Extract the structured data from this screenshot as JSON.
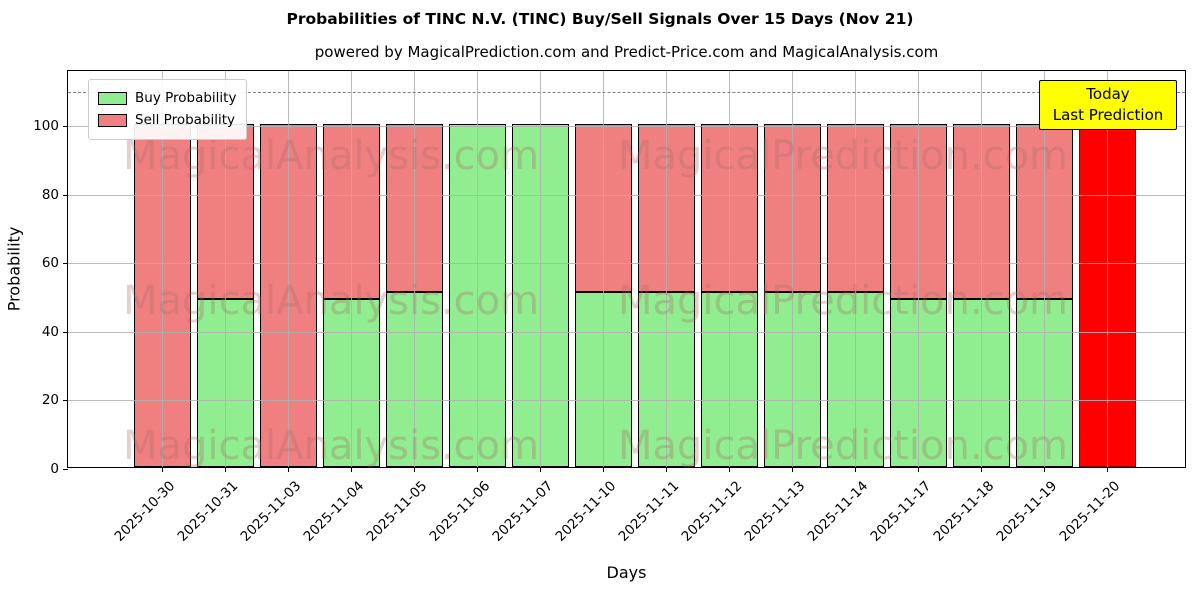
{
  "title": "Probabilities of TINC N.V. (TINC) Buy/Sell Signals Over 15 Days (Nov 21)",
  "subtitle": "powered by MagicalPrediction.com and Predict-Price.com and MagicalAnalysis.com",
  "legend": {
    "items": [
      {
        "label": "Buy Probability",
        "color": "#90ee90",
        "edge": "#000000"
      },
      {
        "label": "Sell Probability",
        "color": "#f08080",
        "edge": "#000000"
      }
    ]
  },
  "annotation": {
    "line1": "Today",
    "line2": "Last Prediction",
    "bg_color": "#ffff00"
  },
  "watermarks": {
    "left_text": "MagicalAnalysis.com",
    "right_text": "MagicalPrediction.com",
    "rows": 3
  },
  "chart_data": {
    "type": "bar",
    "stacked": true,
    "title": "Probabilities of TINC N.V. (TINC) Buy/Sell Signals Over 15 Days (Nov 21)",
    "xlabel": "Days",
    "ylabel": "Probability",
    "categories": [
      "2025-10-30",
      "2025-10-31",
      "2025-11-03",
      "2025-11-04",
      "2025-11-05",
      "2025-11-06",
      "2025-11-07",
      "2025-11-10",
      "2025-11-11",
      "2025-11-12",
      "2025-11-13",
      "2025-11-14",
      "2025-11-17",
      "2025-11-18",
      "2025-11-19",
      "2025-11-20"
    ],
    "series": [
      {
        "name": "Buy Probability",
        "color": "#90ee90",
        "edge": "#000000",
        "values": [
          0,
          49,
          0,
          49,
          51,
          100,
          100,
          51,
          51,
          51,
          51,
          51,
          49,
          49,
          49,
          0
        ]
      },
      {
        "name": "Sell Probability",
        "color": "#f08080",
        "edge": "#000000",
        "values": [
          100,
          51,
          100,
          51,
          49,
          0,
          0,
          49,
          49,
          49,
          49,
          49,
          51,
          51,
          51,
          0
        ]
      },
      {
        "name": "Today Last Prediction",
        "color": "#ff0000",
        "edge": "#8b0000",
        "values": [
          0,
          0,
          0,
          0,
          0,
          0,
          0,
          0,
          0,
          0,
          0,
          0,
          0,
          0,
          0,
          100
        ]
      }
    ],
    "yticks": [
      0,
      20,
      40,
      60,
      80,
      100
    ],
    "ylim": [
      0,
      116
    ],
    "dashed_line_y": 110,
    "grid": true,
    "legend_position": "upper left"
  }
}
